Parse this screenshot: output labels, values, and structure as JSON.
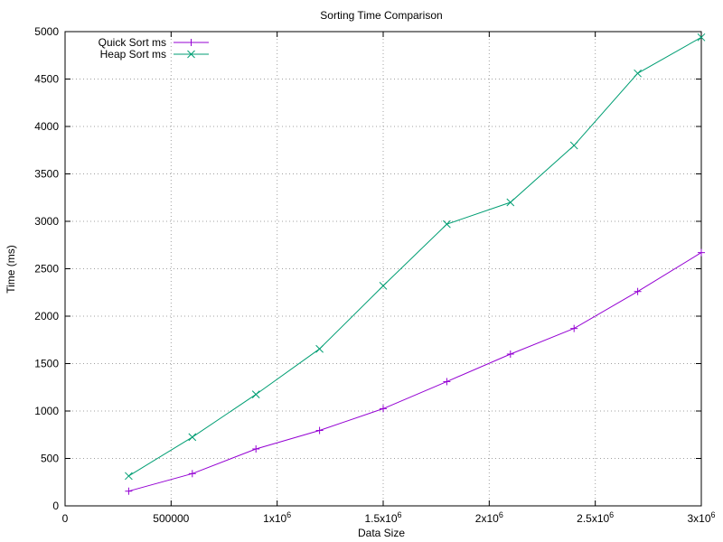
{
  "chart_data": {
    "type": "line",
    "title": "Sorting Time Comparison",
    "xlabel": "Data Size",
    "ylabel": "Time (ms)",
    "xlim": [
      0,
      3000000
    ],
    "ylim": [
      0,
      5000
    ],
    "grid": true,
    "legend_position": "top-left",
    "x_ticks": [
      {
        "value": 0,
        "label": "0",
        "exp": ""
      },
      {
        "value": 500000,
        "label": "500000",
        "exp": ""
      },
      {
        "value": 1000000,
        "label": "1x10",
        "exp": "6"
      },
      {
        "value": 1500000,
        "label": "1.5x10",
        "exp": "6"
      },
      {
        "value": 2000000,
        "label": "2x10",
        "exp": "6"
      },
      {
        "value": 2500000,
        "label": "2.5x10",
        "exp": "6"
      },
      {
        "value": 3000000,
        "label": "3x10",
        "exp": "6"
      }
    ],
    "y_ticks": [
      0,
      500,
      1000,
      1500,
      2000,
      2500,
      3000,
      3500,
      4000,
      4500,
      5000
    ],
    "x": [
      300000,
      600000,
      900000,
      1200000,
      1500000,
      1800000,
      2100000,
      2400000,
      2700000,
      3000000
    ],
    "series": [
      {
        "name": "Quick Sort ms",
        "color": "#9400d3",
        "marker": "plus",
        "values": [
          155,
          340,
          600,
          795,
          1025,
          1310,
          1600,
          1870,
          2260,
          2670
        ]
      },
      {
        "name": "Heap Sort ms",
        "color": "#009e73",
        "marker": "cross",
        "values": [
          315,
          725,
          1175,
          1655,
          2320,
          2970,
          3200,
          3800,
          4560,
          4940
        ]
      }
    ]
  }
}
